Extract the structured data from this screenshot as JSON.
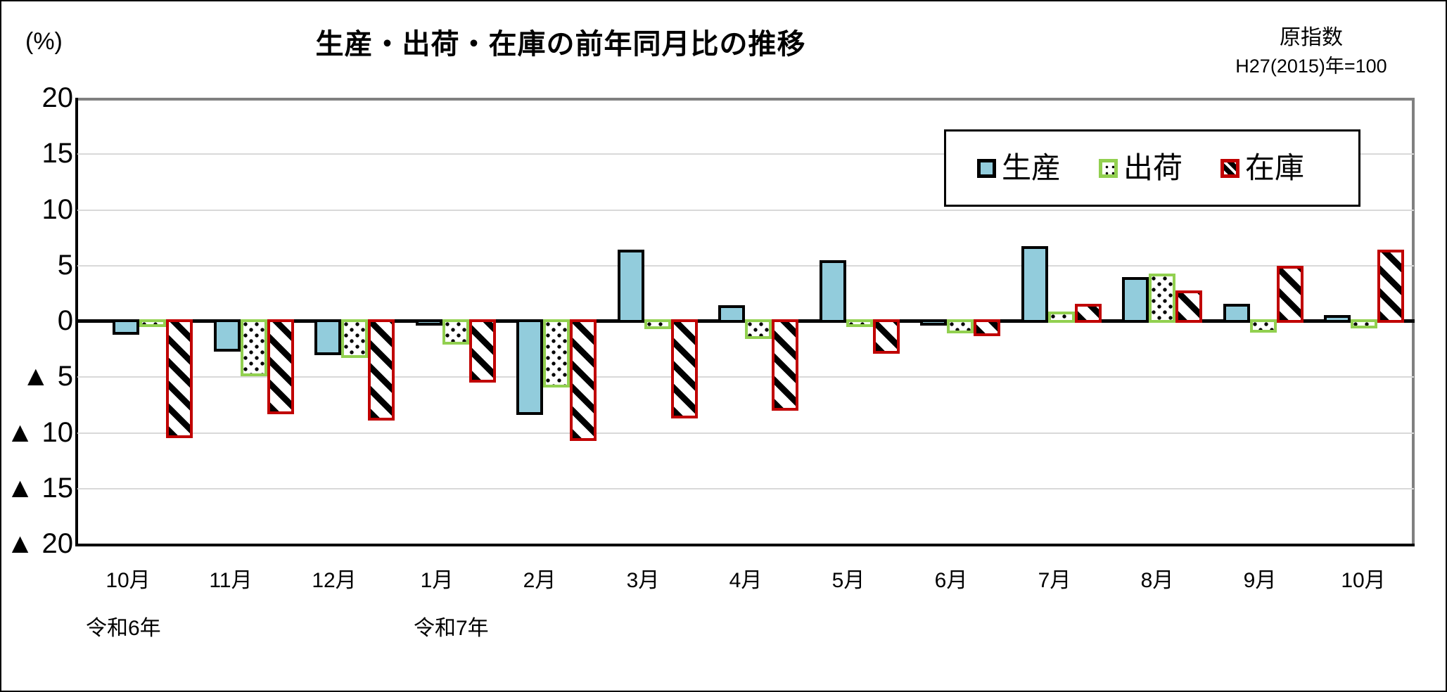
{
  "header": {
    "unit_label": "(%)",
    "title": "生産・出荷・在庫の前年同月比の推移",
    "note_line1": "原指数",
    "note_line2": "H27(2015)年=100"
  },
  "chart_data": {
    "type": "bar",
    "title": "生産・出荷・在庫の前年同月比の推移",
    "unit": "%",
    "index_note": "原指数 H27(2015)年=100",
    "categories": [
      "10月",
      "11月",
      "12月",
      "1月",
      "2月",
      "3月",
      "4月",
      "5月",
      "6月",
      "7月",
      "8月",
      "9月",
      "10月"
    ],
    "era_labels": [
      {
        "text": "令和6年",
        "under": "10月"
      },
      {
        "text": "令和7年",
        "under": "1月"
      }
    ],
    "series": [
      {
        "name": "生産",
        "style": "solid",
        "fill": "#92CCDC",
        "border": "#000000",
        "values": [
          -1.2,
          -2.7,
          -3.0,
          -0.4,
          -8.4,
          6.4,
          1.4,
          5.4,
          -0.4,
          6.7,
          3.9,
          1.5,
          0.5
        ]
      },
      {
        "name": "出荷",
        "style": "dotted",
        "fill": "#FFFFFF",
        "border": "#92D050",
        "values": [
          -0.5,
          -4.9,
          -3.3,
          -2.1,
          -5.9,
          -0.7,
          -1.6,
          -0.5,
          -1.1,
          0.8,
          4.2,
          -1.0,
          -0.6
        ]
      },
      {
        "name": "在庫",
        "style": "diagonal-stripe",
        "fill": "#FFFFFF",
        "border": "#C00000",
        "values": [
          -10.5,
          -8.3,
          -8.9,
          -5.5,
          -10.7,
          -8.7,
          -8.0,
          -2.9,
          -1.3,
          1.5,
          2.7,
          4.9,
          6.4
        ]
      }
    ],
    "ylim": [
      -20,
      20
    ],
    "ytick_step": 5,
    "y_tick_labels": [
      "20",
      "15",
      "10",
      "5",
      "0",
      "▲ 5",
      "▲ 10",
      "▲ 15",
      "▲ 20"
    ],
    "negative_marker": "▲",
    "grid": true,
    "gridline_color": "#D9D9D9",
    "legend_position": "top-right-inside"
  }
}
